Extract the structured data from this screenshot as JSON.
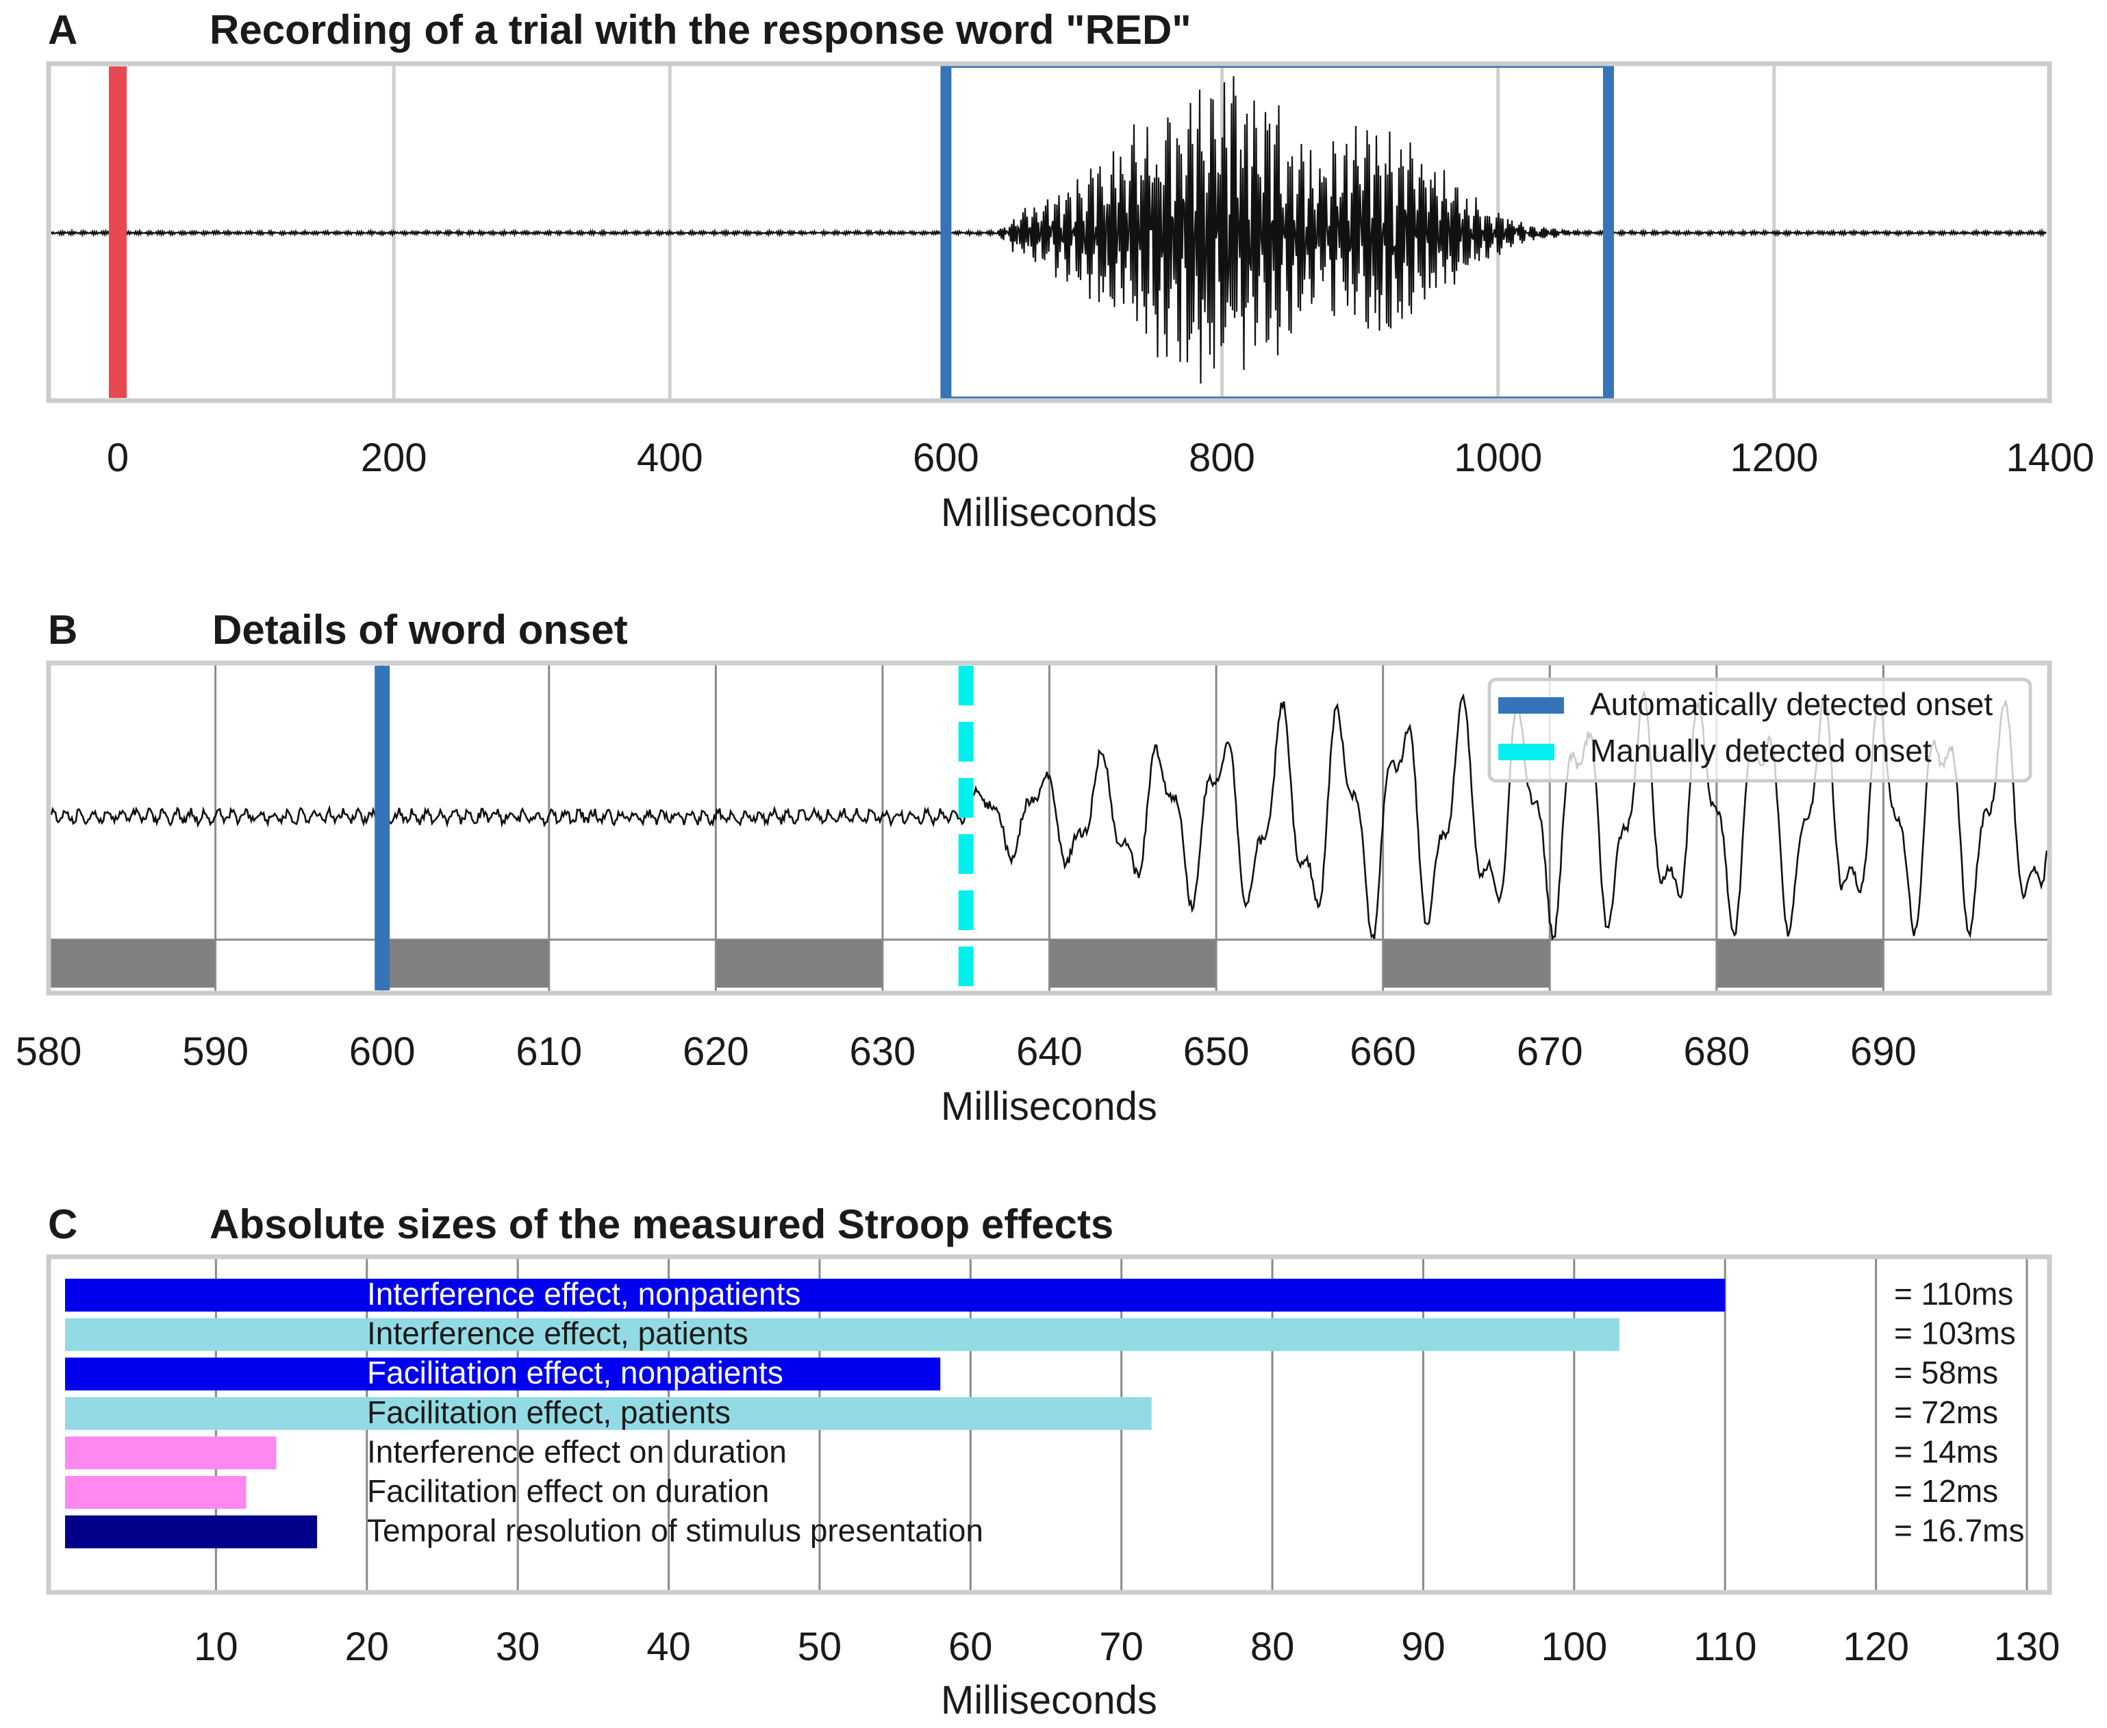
{
  "colors": {
    "waveform": "#111111",
    "stimulus_marker": "#e8484f",
    "auto_onset": "#3574b8",
    "manual_onset": "#00f0f0",
    "frame": "#cccccc",
    "grid_light": "#cfcfcf",
    "grid_dark": "#8a8a8a",
    "frame_block": "#808080",
    "nonpatients": "#0000ee",
    "patients": "#93dbe4",
    "duration": "#ff88f0",
    "temporal": "#00008b"
  },
  "chart_data": [
    {
      "panel": "A",
      "type": "line",
      "title": "Recording of a trial with the response word \"RED\"",
      "xlabel": "Milliseconds",
      "xlim": [
        -25,
        1400
      ],
      "xticks": [
        0,
        200,
        400,
        600,
        800,
        1000,
        1200,
        1400
      ],
      "stimulus_marker_ms": 0,
      "response_window_ms": [
        600,
        1080
      ],
      "series": [
        {
          "name": "audio waveform",
          "speech_start_ms": 635,
          "speech_end_ms": 1080,
          "envelope_peaks": [
            {
              "x": 800,
              "amp": 1.0
            },
            {
              "x": 910,
              "amp": 0.7
            }
          ]
        }
      ]
    },
    {
      "panel": "B",
      "type": "line",
      "title": "Details of word onset",
      "xlabel": "Milliseconds",
      "xlim": [
        580,
        700
      ],
      "xticks": [
        580,
        590,
        600,
        610,
        620,
        630,
        640,
        650,
        660,
        670,
        680,
        690
      ],
      "frame_blocks_ms": [
        [
          580,
          590
        ],
        [
          600,
          610
        ],
        [
          620,
          630
        ],
        [
          640,
          650
        ],
        [
          660,
          670
        ],
        [
          680,
          690
        ]
      ],
      "legend": [
        {
          "label": "Automatically detected onset",
          "x": 600,
          "color": "#3574b8",
          "style": "solid"
        },
        {
          "label": "Manually detected onset",
          "x": 635,
          "color": "#00f0f0",
          "style": "dashed"
        }
      ]
    },
    {
      "panel": "C",
      "type": "bar",
      "orientation": "horizontal",
      "title": "Absolute sizes of the measured Stroop effects",
      "xlabel": "Milliseconds",
      "xlim": [
        0,
        131
      ],
      "xticks": [
        10,
        20,
        30,
        40,
        50,
        60,
        70,
        80,
        90,
        100,
        110,
        120,
        130
      ],
      "categories": [
        "Interference effect, nonpatients",
        "Interference effect, patients",
        "Facilitation effect, nonpatients",
        "Facilitation effect, patients",
        "Interference effect on duration",
        "Facilitation effect on duration",
        "Temporal resolution of stimulus presentation"
      ],
      "values": [
        110,
        103,
        58,
        72,
        14,
        12,
        16.7
      ],
      "value_labels": [
        "= 110ms",
        "= 103ms",
        "= 58ms",
        "= 72ms",
        "= 14ms",
        "= 12ms",
        "= 16.7ms"
      ],
      "bar_colors": [
        "#0000ee",
        "#93dbe4",
        "#0000ee",
        "#93dbe4",
        "#ff88f0",
        "#ff88f0",
        "#00008b"
      ],
      "label_colors": [
        "#ffffff",
        "#1a1a1a",
        "#ffffff",
        "#1a1a1a",
        "#1a1a1a",
        "#1a1a1a",
        "#1a1a1a"
      ]
    }
  ]
}
